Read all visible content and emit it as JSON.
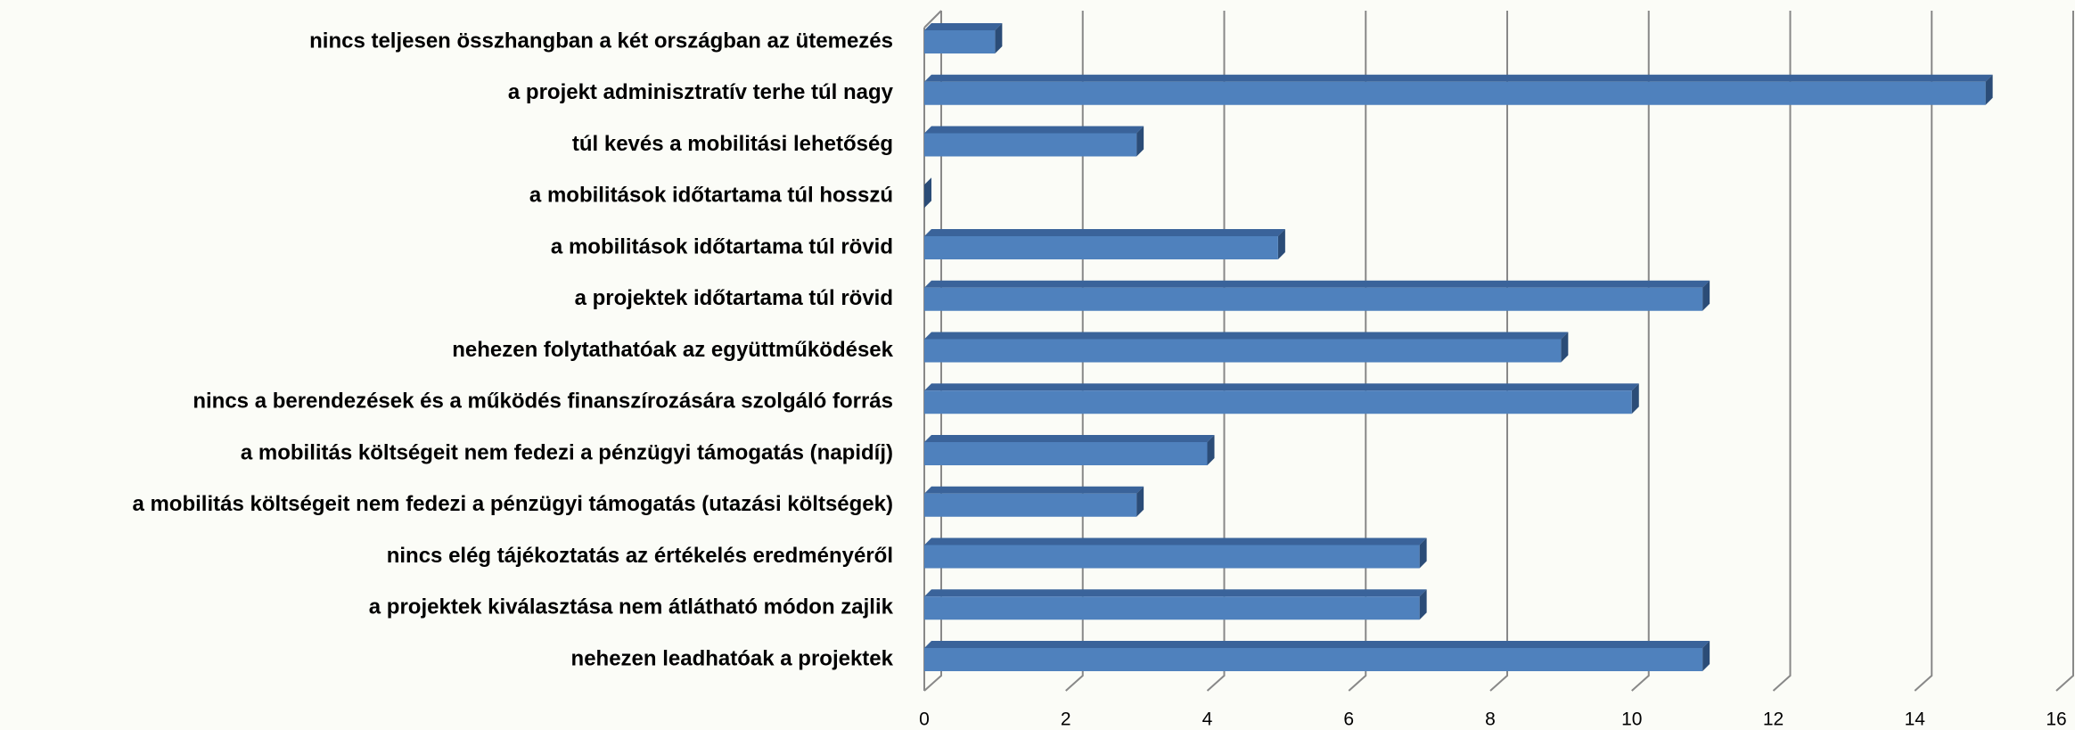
{
  "chart_data": {
    "type": "bar",
    "orientation": "horizontal",
    "categories": [
      "nincs teljesen összhangban a két országban az ütemezés",
      "a projekt adminisztratív terhe túl nagy",
      "túl kevés a mobilitási lehetőség",
      "a mobilitások időtartama túl hosszú",
      "a mobilitások időtartama túl rövid",
      "a projektek időtartama túl rövid",
      "nehezen folytathatóak az együttműködések",
      "nincs a berendezések és a működés finanszírozására szolgáló forrás",
      "a mobilitás költségeit nem fedezi a pénzügyi támogatás (napidíj)",
      "a mobilitás költségeit nem fedezi a pénzügyi támogatás (utazási költségek)",
      "nincs elég tájékoztatás az értékelés eredményéről",
      "a projektek kiválasztása nem átlátható módon zajlik",
      "nehezen leadhatóak a projektek"
    ],
    "values": [
      1,
      15,
      3,
      0,
      5,
      11,
      9,
      10,
      4,
      3,
      7,
      7,
      11
    ],
    "color": "#4f81bd",
    "xlim": [
      0,
      16
    ],
    "xticks": [
      0,
      2,
      4,
      6,
      8,
      10,
      12,
      14,
      16
    ],
    "grid": true
  }
}
